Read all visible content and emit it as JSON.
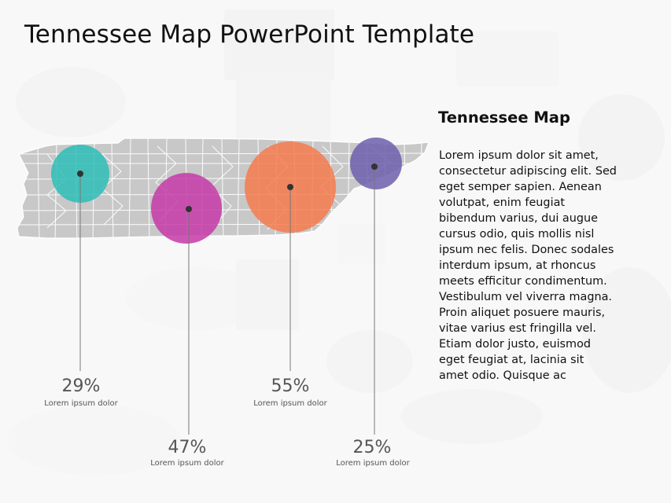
{
  "slide": {
    "title": "Tennessee Map PowerPoint Template"
  },
  "side_panel": {
    "heading": "Tennessee Map",
    "body_lines": [
      "Lorem ipsum dolor sit amet,",
      "consectetur adipiscing elit. Sed",
      "eget semper sapien. Aenean",
      "volutpat, enim feugiat",
      "bibendum varius, dui augue",
      "cursus odio, quis mollis nisl",
      "ipsum nec felis. Donec sodales",
      "interdum ipsum, at rhoncus",
      "meets efficitur condimentum.",
      "Vestibulum vel viverra magna.",
      "Proin aliquet posuere mauris,",
      "vitae varius est fringilla vel.",
      "Etiam dolor justo, euismod",
      "eget feugiat at, lacinia sit",
      "amet odio. Quisque ac"
    ]
  },
  "markers": [
    {
      "value": "29%",
      "caption": "Lorem ipsum dolor",
      "color": "#2dbdb6"
    },
    {
      "value": "47%",
      "caption": "Lorem ipsum dolor",
      "color": "#c63aa8"
    },
    {
      "value": "55%",
      "caption": "Lorem ipsum dolor",
      "color": "#f47b4e"
    },
    {
      "value": "25%",
      "caption": "Lorem ipsum dolor",
      "color": "#6d5fae"
    }
  ],
  "colors": {
    "map_fill": "#c8c8c8",
    "map_border": "#ffffff",
    "leader_line": "#777777",
    "dot": "#333333"
  }
}
